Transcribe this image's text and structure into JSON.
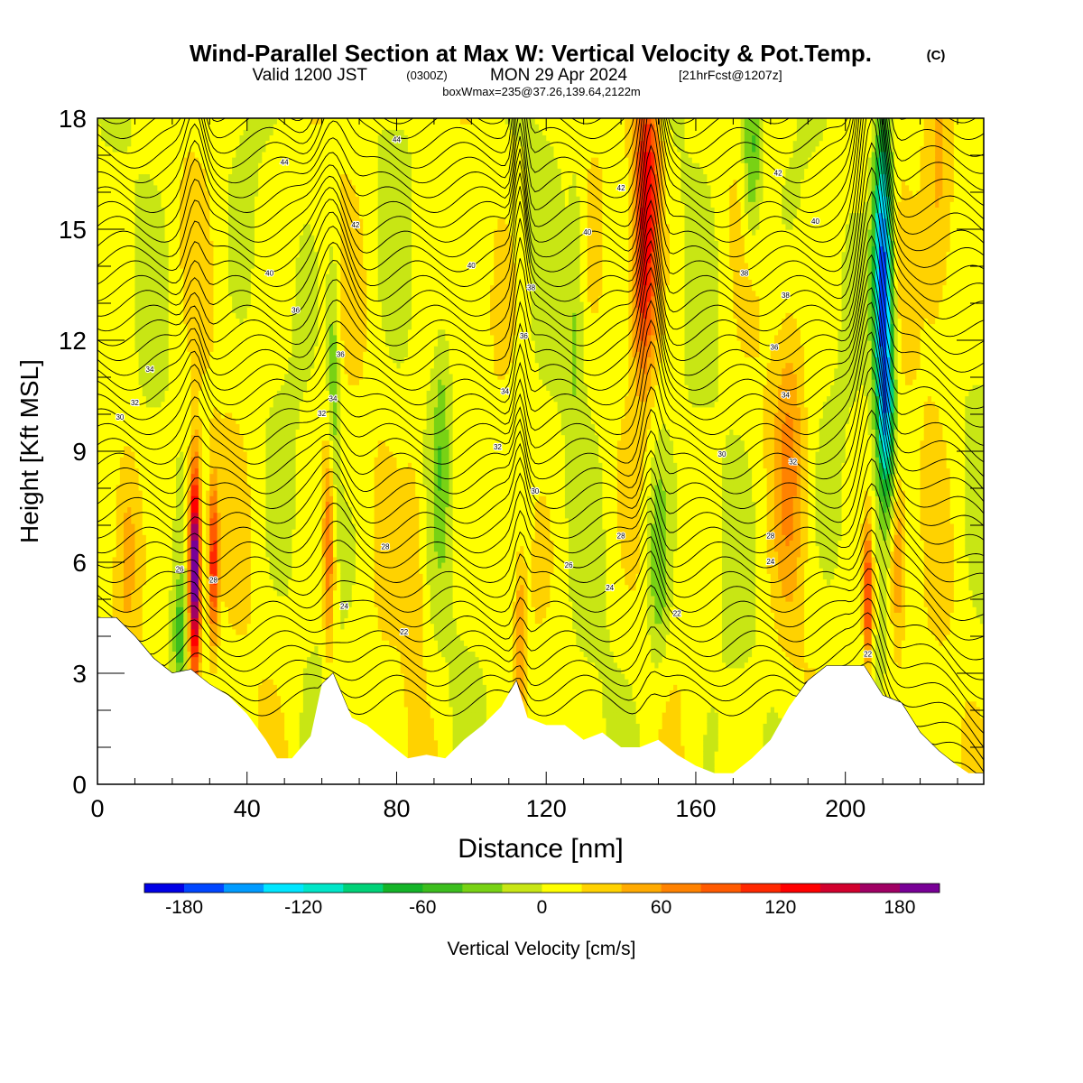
{
  "header": {
    "title": "Wind-Parallel Section at Max W: Vertical Velocity & Pot.Temp.",
    "copyright": "(C)",
    "valid_main": "Valid 1200 JST",
    "valid_z": "(0300Z)",
    "valid_date": "MON 29 Apr 2024",
    "fcst": "[21hrFcst@1207z]",
    "box": "boxWmax=235@37.26,139.64,2122m"
  },
  "chart_data": {
    "type": "heatmap",
    "title": "Wind-Parallel Section at Max W: Vertical Velocity & Pot.Temp.",
    "xlabel": "Distance [nm]",
    "ylabel": "Height [Kft MSL]",
    "xlim": [
      0,
      237
    ],
    "ylim": [
      0,
      18
    ],
    "xticks": [
      0,
      40,
      80,
      120,
      160,
      200
    ],
    "yticks": [
      0,
      3,
      6,
      9,
      12,
      15,
      18
    ],
    "colorbar": {
      "label": "Vertical Velocity [cm/s]",
      "min": -200,
      "step": 20,
      "tick_values": [
        -180,
        -120,
        -60,
        0,
        60,
        120,
        180
      ],
      "tick_labels": [
        "-180",
        "-120",
        "-60",
        "0",
        "60",
        "120",
        "180"
      ],
      "colors": [
        "#0000e6",
        "#0046ff",
        "#009bff",
        "#00e6ff",
        "#00e6c8",
        "#00d278",
        "#14b428",
        "#3cbe1e",
        "#78d214",
        "#c8e614",
        "#ffff00",
        "#ffd200",
        "#ffaa00",
        "#ff8200",
        "#ff5a00",
        "#ff2800",
        "#ff0000",
        "#d2002d",
        "#a00064",
        "#780096"
      ]
    },
    "terrain_kft": [
      [
        0,
        4.5
      ],
      [
        5,
        4.5
      ],
      [
        10,
        4.0
      ],
      [
        15,
        3.4
      ],
      [
        20,
        3.0
      ],
      [
        25,
        3.1
      ],
      [
        30,
        2.7
      ],
      [
        35,
        2.4
      ],
      [
        40,
        1.9
      ],
      [
        45,
        1.2
      ],
      [
        48,
        0.7
      ],
      [
        52,
        0.7
      ],
      [
        57,
        1.3
      ],
      [
        60,
        2.7
      ],
      [
        63,
        3.0
      ],
      [
        68,
        1.8
      ],
      [
        72,
        1.6
      ],
      [
        78,
        1.1
      ],
      [
        83,
        0.7
      ],
      [
        88,
        0.8
      ],
      [
        93,
        0.7
      ],
      [
        98,
        1.2
      ],
      [
        103,
        1.6
      ],
      [
        108,
        2.1
      ],
      [
        112,
        2.8
      ],
      [
        115,
        1.8
      ],
      [
        120,
        1.6
      ],
      [
        125,
        1.6
      ],
      [
        130,
        1.2
      ],
      [
        135,
        1.4
      ],
      [
        140,
        1.0
      ],
      [
        145,
        1.0
      ],
      [
        150,
        1.2
      ],
      [
        155,
        0.8
      ],
      [
        160,
        0.5
      ],
      [
        165,
        0.3
      ],
      [
        170,
        0.3
      ],
      [
        175,
        0.7
      ],
      [
        180,
        1.2
      ],
      [
        185,
        2.1
      ],
      [
        190,
        2.8
      ],
      [
        195,
        3.2
      ],
      [
        205,
        3.2
      ],
      [
        210,
        2.4
      ],
      [
        215,
        2.2
      ],
      [
        220,
        1.4
      ],
      [
        225,
        0.9
      ],
      [
        230,
        0.5
      ],
      [
        233,
        0.3
      ],
      [
        237,
        0.3
      ]
    ],
    "theta_contour_labels": [
      "44",
      "44",
      "42",
      "42",
      "42",
      "40",
      "40",
      "40",
      "40",
      "38",
      "38",
      "38",
      "36",
      "36",
      "36",
      "36",
      "34",
      "34",
      "34",
      "34",
      "32",
      "32",
      "32",
      "32",
      "30",
      "30",
      "30",
      "28",
      "28",
      "28",
      "28",
      "26",
      "26",
      "24",
      "24",
      "24",
      "22",
      "22",
      "22"
    ],
    "updraft_max_cm_s": 235,
    "grid": false
  }
}
